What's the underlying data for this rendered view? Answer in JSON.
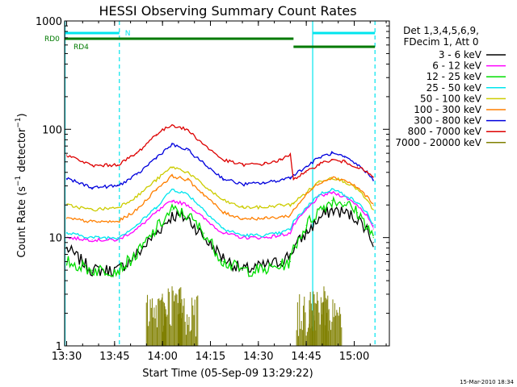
{
  "chart_data": {
    "type": "line",
    "title": "HESSI Observing Summary Count Rates",
    "xlabel": "Start Time (05-Sep-09 13:29:22)",
    "ylabel": "Count Rate (s⁻¹ detector⁻¹)",
    "ylabel_parts": {
      "prefix": "Count Rate (s",
      "exp1": "−1",
      "middle": " detector",
      "exp2": "−1",
      "suffix": ")"
    },
    "y_scale": "log",
    "ylim": [
      1,
      1000
    ],
    "xlim": [
      "13:29:22",
      "15:11:00"
    ],
    "x_ticks": [
      "13:30",
      "13:45",
      "14:00",
      "14:15",
      "14:30",
      "14:45",
      "15:00"
    ],
    "y_ticks": [
      "1",
      "10",
      "100",
      "1000"
    ],
    "footer_timestamp": "15-Mar-2010 18:34",
    "legend_placement": "right",
    "legend_header": [
      "Det 1,3,4,5,6,9,",
      "FDecim 1, Att 0"
    ],
    "flags": [
      {
        "name": "N",
        "color": "#00e5ee",
        "segments": [
          [
            "13:29:22",
            "13:46:30"
          ],
          [
            "14:47:00",
            "15:06:30"
          ]
        ]
      },
      {
        "name": "RD0",
        "color": "#007a00",
        "segments": [
          [
            "13:29:22",
            "14:41:00"
          ]
        ]
      },
      {
        "name": "RD4",
        "color": "#007a00",
        "segments": [
          [
            "14:41:00",
            "15:06:30"
          ]
        ]
      }
    ],
    "vlines": [
      {
        "time": "13:29:30",
        "style": "solid",
        "color": "#00e5ee"
      },
      {
        "time": "13:46:30",
        "style": "dashed",
        "color": "#00e5ee"
      },
      {
        "time": "14:47:00",
        "style": "solid",
        "color": "#00e5ee"
      },
      {
        "time": "15:06:30",
        "style": "dashed",
        "color": "#00e5ee"
      }
    ],
    "x": [
      "13:30",
      "13:38",
      "13:46",
      "13:52",
      "13:58",
      "14:03",
      "14:08",
      "14:13",
      "14:19",
      "14:25",
      "14:32",
      "14:37",
      "14:40",
      "14:41",
      "14:45",
      "14:49",
      "14:53",
      "14:57",
      "15:01",
      "15:04",
      "15:06"
    ],
    "series": [
      {
        "name": "3 - 6 keV",
        "color": "#000000",
        "values": [
          8,
          5,
          5,
          7,
          11,
          16,
          15,
          10,
          6.5,
          5,
          5.5,
          6,
          7,
          8,
          11,
          15,
          18,
          17,
          15,
          12,
          9
        ]
      },
      {
        "name": "6 - 12 keV",
        "color": "#ff00ff",
        "values": [
          10,
          9.5,
          9.5,
          12,
          17,
          22,
          20,
          15,
          11,
          10,
          10,
          10.5,
          11,
          13,
          18,
          24,
          26,
          24,
          20,
          16,
          12
        ]
      },
      {
        "name": "12 - 25 keV",
        "color": "#00dd00",
        "values": [
          6,
          5,
          5,
          7,
          12,
          18,
          16,
          11,
          6,
          5,
          5,
          5.5,
          6,
          8,
          13,
          18,
          22,
          21,
          17,
          13,
          10
        ]
      },
      {
        "name": "25 - 50 keV",
        "color": "#00e5ee",
        "values": [
          11,
          10,
          10,
          13,
          19,
          28,
          25,
          18,
          12,
          10.5,
          10.5,
          11,
          12,
          14,
          19,
          25,
          28,
          25,
          21,
          17,
          13
        ]
      },
      {
        "name": "50 - 100 keV",
        "color": "#cccc00",
        "values": [
          20,
          18,
          19,
          24,
          34,
          45,
          40,
          30,
          22,
          19,
          19,
          20,
          20,
          21,
          26,
          33,
          36,
          33,
          28,
          22,
          18
        ]
      },
      {
        "name": "100 - 300 keV",
        "color": "#ff7f00",
        "values": [
          15,
          14,
          14,
          18,
          28,
          37,
          34,
          25,
          17,
          15,
          15,
          15.5,
          16,
          18,
          25,
          32,
          36,
          34,
          29,
          24,
          20
        ]
      },
      {
        "name": "300 - 800 keV",
        "color": "#0000dd",
        "values": [
          35,
          29,
          30,
          38,
          55,
          72,
          64,
          48,
          35,
          31,
          32,
          34,
          36,
          38,
          45,
          55,
          60,
          55,
          47,
          40,
          34
        ]
      },
      {
        "name": "800 - 7000 keV",
        "color": "#dd0000",
        "values": [
          58,
          46,
          47,
          60,
          90,
          110,
          98,
          72,
          52,
          47,
          48,
          52,
          58,
          35,
          40,
          48,
          52,
          50,
          45,
          40,
          36
        ]
      },
      {
        "name": "7000 - 20000 keV",
        "color": "#808000",
        "values": [
          null,
          null,
          null,
          null,
          2,
          2.5,
          2,
          null,
          null,
          null,
          null,
          null,
          null,
          null,
          2,
          2.5,
          2,
          null,
          null,
          null,
          null
        ]
      }
    ]
  }
}
